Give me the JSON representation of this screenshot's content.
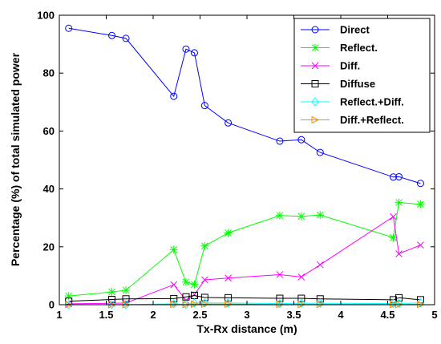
{
  "chart_data": {
    "type": "line",
    "title": "",
    "xlabel": "Tx-Rx distance (m)",
    "ylabel": "Percentage (%) of total simulated power",
    "xlim": [
      1,
      5
    ],
    "ylim": [
      0,
      100
    ],
    "x_ticks": [
      1,
      1.5,
      2,
      2.5,
      3,
      3.5,
      4,
      4.5,
      5
    ],
    "x_tick_labels": [
      "1",
      "1.5",
      "2",
      "2.5",
      "3",
      "3.5",
      "4",
      "4.5",
      "5"
    ],
    "y_ticks": [
      0,
      20,
      40,
      60,
      80,
      100
    ],
    "y_tick_labels": [
      "0",
      "20",
      "40",
      "60",
      "80",
      "100"
    ],
    "grid": false,
    "legend_position": "top-right",
    "x": [
      1.1,
      1.56,
      1.71,
      2.22,
      2.35,
      2.44,
      2.55,
      2.8,
      3.35,
      3.58,
      3.78,
      4.56,
      4.62,
      4.85
    ],
    "series": [
      {
        "name": "Direct",
        "color": "#0000ff",
        "marker": "circle",
        "values": [
          95.5,
          93,
          92,
          72,
          88.3,
          87,
          68.8,
          62.8,
          56.5,
          57,
          52.6,
          44.1,
          44.2,
          41.9
        ]
      },
      {
        "name": "Reflect.",
        "color": "#00ff00",
        "marker": "star",
        "values": [
          3,
          4.4,
          5,
          19,
          7.8,
          7,
          20.3,
          24.8,
          30.8,
          30.5,
          31,
          23.2,
          35.3,
          34.7
        ]
      },
      {
        "name": "Diff.",
        "color": "#ff00ff",
        "marker": "x",
        "values": [
          0.3,
          0.5,
          0.6,
          6.9,
          1.5,
          3.5,
          8.6,
          9.2,
          10.4,
          9.6,
          13.8,
          30.4,
          17.6,
          20.6
        ]
      },
      {
        "name": "Diffuse",
        "color": "#000000",
        "marker": "square",
        "values": [
          1.2,
          1.8,
          2,
          2.1,
          2.7,
          3.2,
          2.5,
          2.4,
          2.2,
          2.2,
          2,
          1.7,
          2.4,
          1.7
        ]
      },
      {
        "name": "Reflect.+Diff.",
        "color": "#00ffff",
        "marker": "diamond",
        "values": [
          0,
          0.05,
          0.05,
          0.3,
          0.1,
          0.6,
          0.6,
          0.6,
          0.4,
          0.5,
          0.5,
          0.4,
          0.4,
          0.6
        ]
      },
      {
        "name": "Diff.+Reflect.",
        "color": "#ff8c00",
        "marker": "triangle-right",
        "values": [
          0,
          0,
          0,
          0.1,
          0.05,
          0.2,
          0.2,
          0.2,
          0.1,
          0.1,
          0.1,
          0.1,
          0.1,
          0.1
        ]
      }
    ]
  }
}
